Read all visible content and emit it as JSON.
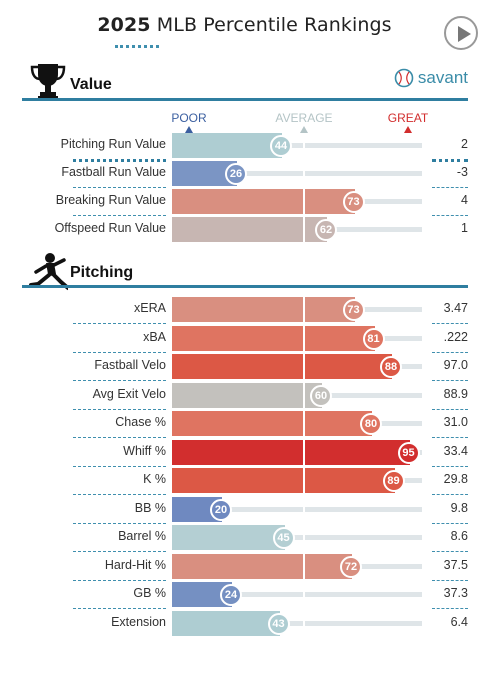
{
  "header": {
    "year": "2025",
    "title": "MLB Percentile Rankings"
  },
  "colors": {
    "accent": "#2f7ea0",
    "poor": "#3b5fa0",
    "average": "#b4c4c6",
    "great": "#d22e2e"
  },
  "value_section": {
    "label": "Value",
    "icon": "trophy-icon",
    "brand": "savant",
    "brand_icon": "baseball-icon",
    "scale": {
      "poor": "POOR",
      "average": "AVERAGE",
      "great": "GREAT"
    },
    "rows": [
      {
        "name": "Pitching Run Value",
        "percentile": 44,
        "value": "2",
        "color": "#aecdd2"
      },
      {
        "name": "Fastball Run Value",
        "percentile": 26,
        "value": "-3",
        "color": "#7b95c4"
      },
      {
        "name": "Breaking Run Value",
        "percentile": 73,
        "value": "4",
        "color": "#d98f80"
      },
      {
        "name": "Offspeed Run Value",
        "percentile": 62,
        "value": "1",
        "color": "#c7b6b2"
      }
    ]
  },
  "pitching_section": {
    "label": "Pitching",
    "icon": "pitcher-icon",
    "rows": [
      {
        "name": "xERA",
        "percentile": 73,
        "value": "3.47",
        "color": "#d98f80"
      },
      {
        "name": "xBA",
        "percentile": 81,
        "value": ".222",
        "color": "#df7461"
      },
      {
        "name": "Fastball Velo",
        "percentile": 88,
        "value": "97.0",
        "color": "#dc5845"
      },
      {
        "name": "Avg Exit Velo",
        "percentile": 60,
        "value": "88.9",
        "color": "#c3c1bd"
      },
      {
        "name": "Chase %",
        "percentile": 80,
        "value": "31.0",
        "color": "#df7461"
      },
      {
        "name": "Whiff %",
        "percentile": 95,
        "value": "33.4",
        "color": "#d22e2e"
      },
      {
        "name": "K %",
        "percentile": 89,
        "value": "29.8",
        "color": "#dc5845"
      },
      {
        "name": "BB %",
        "percentile": 20,
        "value": "9.8",
        "color": "#6f89c0"
      },
      {
        "name": "Barrel %",
        "percentile": 45,
        "value": "8.6",
        "color": "#b4cfd3"
      },
      {
        "name": "Hard-Hit %",
        "percentile": 72,
        "value": "37.5",
        "color": "#d98f80"
      },
      {
        "name": "GB %",
        "percentile": 24,
        "value": "37.3",
        "color": "#7590c2"
      },
      {
        "name": "Extension",
        "percentile": 43,
        "value": "6.4",
        "color": "#aecdd2"
      }
    ]
  }
}
